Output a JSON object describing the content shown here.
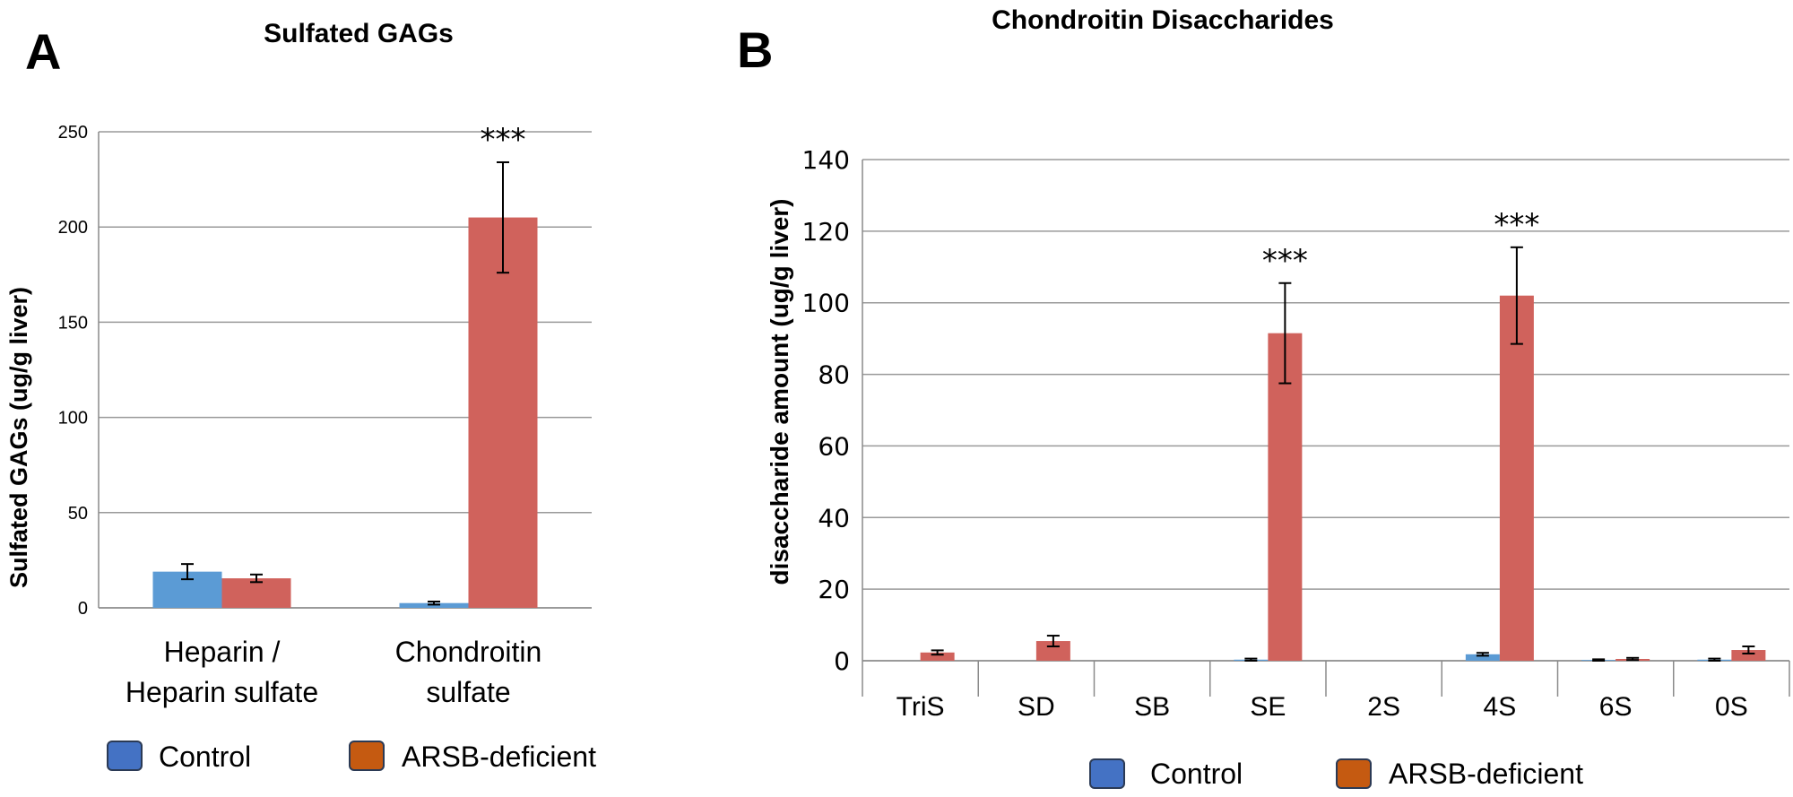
{
  "colors": {
    "control_bar": "#5b9bd5",
    "arsb_bar": "#d0625c",
    "control_legend": "#4472c4",
    "arsb_legend": "#c55a11"
  },
  "legend": {
    "control": "Control",
    "arsb": "ARSB-deficient"
  },
  "chart_data": [
    {
      "panel": "A",
      "type": "bar",
      "title": "Sulfated GAGs",
      "ylabel": "Sulfated GAGs (ug/g liver)",
      "xlabel": "",
      "ylim": [
        0,
        250
      ],
      "yticks": [
        0,
        50,
        100,
        150,
        200,
        250
      ],
      "grid": true,
      "legend_position": "bottom",
      "categories": [
        [
          "Heparin /",
          "Heparin sulfate"
        ],
        [
          "Chondroitin",
          "sulfate"
        ]
      ],
      "series": [
        {
          "name": "Control",
          "values": [
            19,
            2.5
          ],
          "errors": [
            4,
            0.8
          ]
        },
        {
          "name": "ARSB-deficient",
          "values": [
            15.5,
            205
          ],
          "errors": [
            2,
            29
          ]
        }
      ],
      "annotations": [
        {
          "category_index": 1,
          "series_index": 1,
          "text": "***"
        }
      ]
    },
    {
      "panel": "B",
      "type": "bar",
      "title": "Chondroitin Disaccharides",
      "ylabel": "disaccharide amount (ug/g liver)",
      "xlabel": "",
      "ylim": [
        0,
        140
      ],
      "yticks": [
        0,
        20,
        40,
        60,
        80,
        100,
        120,
        140
      ],
      "grid": true,
      "legend_position": "bottom",
      "categories": [
        "TriS",
        "SD",
        "SB",
        "SE",
        "2S",
        "4S",
        "6S",
        "0S"
      ],
      "series": [
        {
          "name": "Control",
          "values": [
            0,
            0,
            0,
            0.3,
            0,
            1.8,
            0.2,
            0.3
          ],
          "errors": [
            0,
            0,
            0,
            0.3,
            0,
            0.4,
            0.2,
            0.3
          ]
        },
        {
          "name": "ARSB-deficient",
          "values": [
            2.3,
            5.5,
            0,
            91.5,
            0,
            102,
            0.5,
            3
          ],
          "errors": [
            0.6,
            1.5,
            0,
            14,
            0,
            13.5,
            0.3,
            1
          ]
        }
      ],
      "annotations": [
        {
          "category_index": 3,
          "series_index": 1,
          "text": "***"
        },
        {
          "category_index": 5,
          "series_index": 1,
          "text": "***"
        }
      ]
    }
  ]
}
